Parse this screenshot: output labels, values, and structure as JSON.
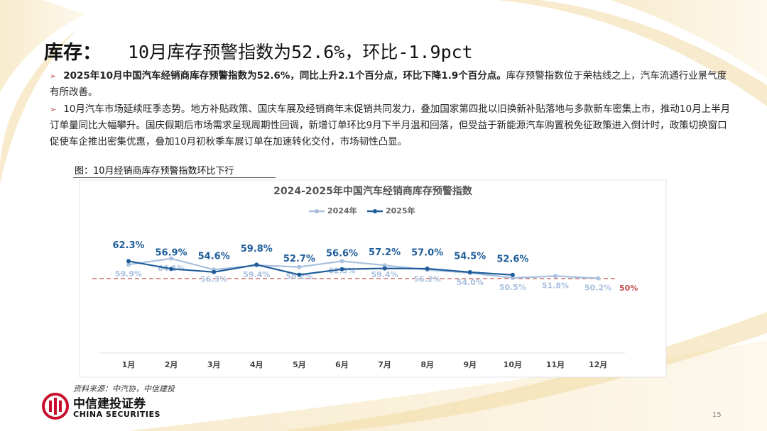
{
  "header": {
    "label": "库存：",
    "title": "10月库存预警指数为52.6%，环比-1.9pct"
  },
  "bullets": [
    {
      "bold": "2025年10月中国汽车经销商库存预警指数为52.6%，同比上升2.1个百分点，环比下降1.9个百分点。",
      "text": "库存预警指数位于荣枯线之上，汽车流通行业景气度有所改善。"
    },
    {
      "text": "10月汽车市场延续旺季态势。地方补贴政策、国庆车展及经销商年末促销共同发力，叠加国家第四批以旧换新补贴落地与多款新车密集上市，推动10月上半月订单量同比大幅攀升。国庆假期后市场需求呈现周期性回调，新增订单环比9月下半月温和回落，但受益于新能源汽车购置税免征政策进入倒计时，政策切换窗口促使车企推出密集优惠，叠加10月初秋季车展订单在加速转化交付，市场韧性凸显。"
    }
  ],
  "figure_caption": "图：10月经销商库存预警指数环比下行",
  "chart_data": {
    "type": "line",
    "title": "2024-2025年中国汽车经销商库存预警指数",
    "categories": [
      "1月",
      "2月",
      "3月",
      "4月",
      "5月",
      "6月",
      "7月",
      "8月",
      "9月",
      "10月",
      "11月",
      "12月"
    ],
    "series": [
      {
        "name": "2024年",
        "color": "#a9c0de",
        "values": [
          59.9,
          64.1,
          56.3,
          59.4,
          58.2,
          62.3,
          59.4,
          56.2,
          54.0,
          50.5,
          51.8,
          50.2
        ],
        "value_labels": [
          "59.9%",
          "64.1%",
          "56.3%",
          "59.4%",
          "58.2%",
          "62.3%",
          "59.4%",
          "56.2%",
          "54.0%",
          "50.5%",
          "51.8%",
          "50.2%"
        ]
      },
      {
        "name": "2025年",
        "color": "#1f5d9a",
        "values": [
          62.3,
          56.9,
          54.6,
          59.8,
          52.7,
          56.6,
          57.2,
          57.0,
          54.5,
          52.6,
          null,
          null
        ],
        "value_labels": [
          "62.3%",
          "56.9%",
          "54.6%",
          "59.8%",
          "52.7%",
          "56.6%",
          "57.2%",
          "57.0%",
          "54.5%",
          "52.6%",
          null,
          null
        ]
      }
    ],
    "ylim": [
      0,
      100
    ],
    "legend": "top",
    "grid": false,
    "reference_line": {
      "value": 50,
      "label": "50%",
      "color": "#c0504d"
    }
  },
  "source": "资料来源：中汽协，中信建投",
  "logo": {
    "cn": "中信建投证券",
    "en": "CHINA SECURITIES"
  },
  "page_number": "15"
}
